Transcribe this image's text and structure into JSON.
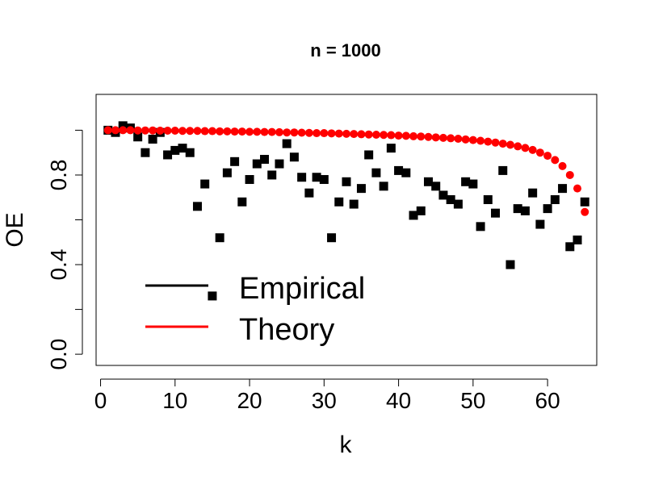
{
  "chart_data": {
    "type": "scatter",
    "title": "n =  1000",
    "xlabel": "k",
    "ylabel": "OE",
    "xlim": [
      -0.6,
      66.6
    ],
    "ylim": [
      -0.05,
      1.16
    ],
    "xticks": [
      0,
      10,
      20,
      30,
      40,
      50,
      60
    ],
    "yticks": [
      0.0,
      0.4,
      0.8
    ],
    "ytick_labels": [
      "0.0",
      "0.4",
      "0.8"
    ],
    "yticks_minor": [
      0.2,
      0.6,
      1.0
    ],
    "grid": false,
    "legend": {
      "position": "bottom-left",
      "entries": [
        {
          "label": "Empirical",
          "color": "#000000"
        },
        {
          "label": "Theory",
          "color": "#ff0000"
        }
      ]
    },
    "series": [
      {
        "name": "Empirical",
        "color": "#000000",
        "marker": "square",
        "x": [
          1,
          2,
          3,
          4,
          5,
          6,
          7,
          8,
          9,
          10,
          11,
          12,
          13,
          14,
          15,
          16,
          17,
          18,
          19,
          20,
          21,
          22,
          23,
          24,
          25,
          26,
          27,
          28,
          29,
          30,
          31,
          32,
          33,
          34,
          35,
          36,
          37,
          38,
          39,
          40,
          41,
          42,
          43,
          44,
          45,
          46,
          47,
          48,
          49,
          50,
          51,
          52,
          53,
          54,
          55,
          56,
          57,
          58,
          59,
          60,
          61,
          62,
          63,
          64,
          65
        ],
        "y": [
          1.0,
          0.99,
          1.02,
          1.01,
          0.97,
          0.9,
          0.96,
          0.99,
          0.89,
          0.91,
          0.92,
          0.9,
          0.66,
          0.76,
          0.26,
          0.52,
          0.81,
          0.86,
          0.68,
          0.78,
          0.85,
          0.87,
          0.8,
          0.85,
          0.94,
          0.88,
          0.79,
          0.72,
          0.79,
          0.78,
          0.52,
          0.68,
          0.77,
          0.67,
          0.74,
          0.89,
          0.81,
          0.75,
          0.92,
          0.82,
          0.81,
          0.62,
          0.64,
          0.77,
          0.75,
          0.71,
          0.69,
          0.67,
          0.77,
          0.76,
          0.57,
          0.69,
          0.63,
          0.82,
          0.4,
          0.65,
          0.64,
          0.72,
          0.58,
          0.65,
          0.69,
          0.74,
          0.48,
          0.51,
          0.68
        ]
      },
      {
        "name": "Theory",
        "color": "#ff0000",
        "marker": "circle",
        "x": [
          1,
          2,
          3,
          4,
          5,
          6,
          7,
          8,
          9,
          10,
          11,
          12,
          13,
          14,
          15,
          16,
          17,
          18,
          19,
          20,
          21,
          22,
          23,
          24,
          25,
          26,
          27,
          28,
          29,
          30,
          31,
          32,
          33,
          34,
          35,
          36,
          37,
          38,
          39,
          40,
          41,
          42,
          43,
          44,
          45,
          46,
          47,
          48,
          49,
          50,
          51,
          52,
          53,
          54,
          55,
          56,
          57,
          58,
          59,
          60,
          61,
          62,
          63,
          64,
          65
        ],
        "y": [
          1.0,
          1.0,
          1.0,
          1.0,
          0.999,
          0.999,
          0.999,
          0.998,
          0.998,
          0.998,
          0.997,
          0.997,
          0.997,
          0.996,
          0.996,
          0.995,
          0.995,
          0.994,
          0.994,
          0.993,
          0.993,
          0.992,
          0.992,
          0.991,
          0.99,
          0.99,
          0.989,
          0.988,
          0.987,
          0.987,
          0.986,
          0.985,
          0.984,
          0.983,
          0.982,
          0.981,
          0.98,
          0.979,
          0.978,
          0.976,
          0.975,
          0.973,
          0.972,
          0.97,
          0.968,
          0.966,
          0.964,
          0.962,
          0.959,
          0.956,
          0.953,
          0.949,
          0.945,
          0.94,
          0.935,
          0.928,
          0.921,
          0.912,
          0.9,
          0.886,
          0.867,
          0.84,
          0.8,
          0.74,
          0.635
        ]
      }
    ]
  }
}
